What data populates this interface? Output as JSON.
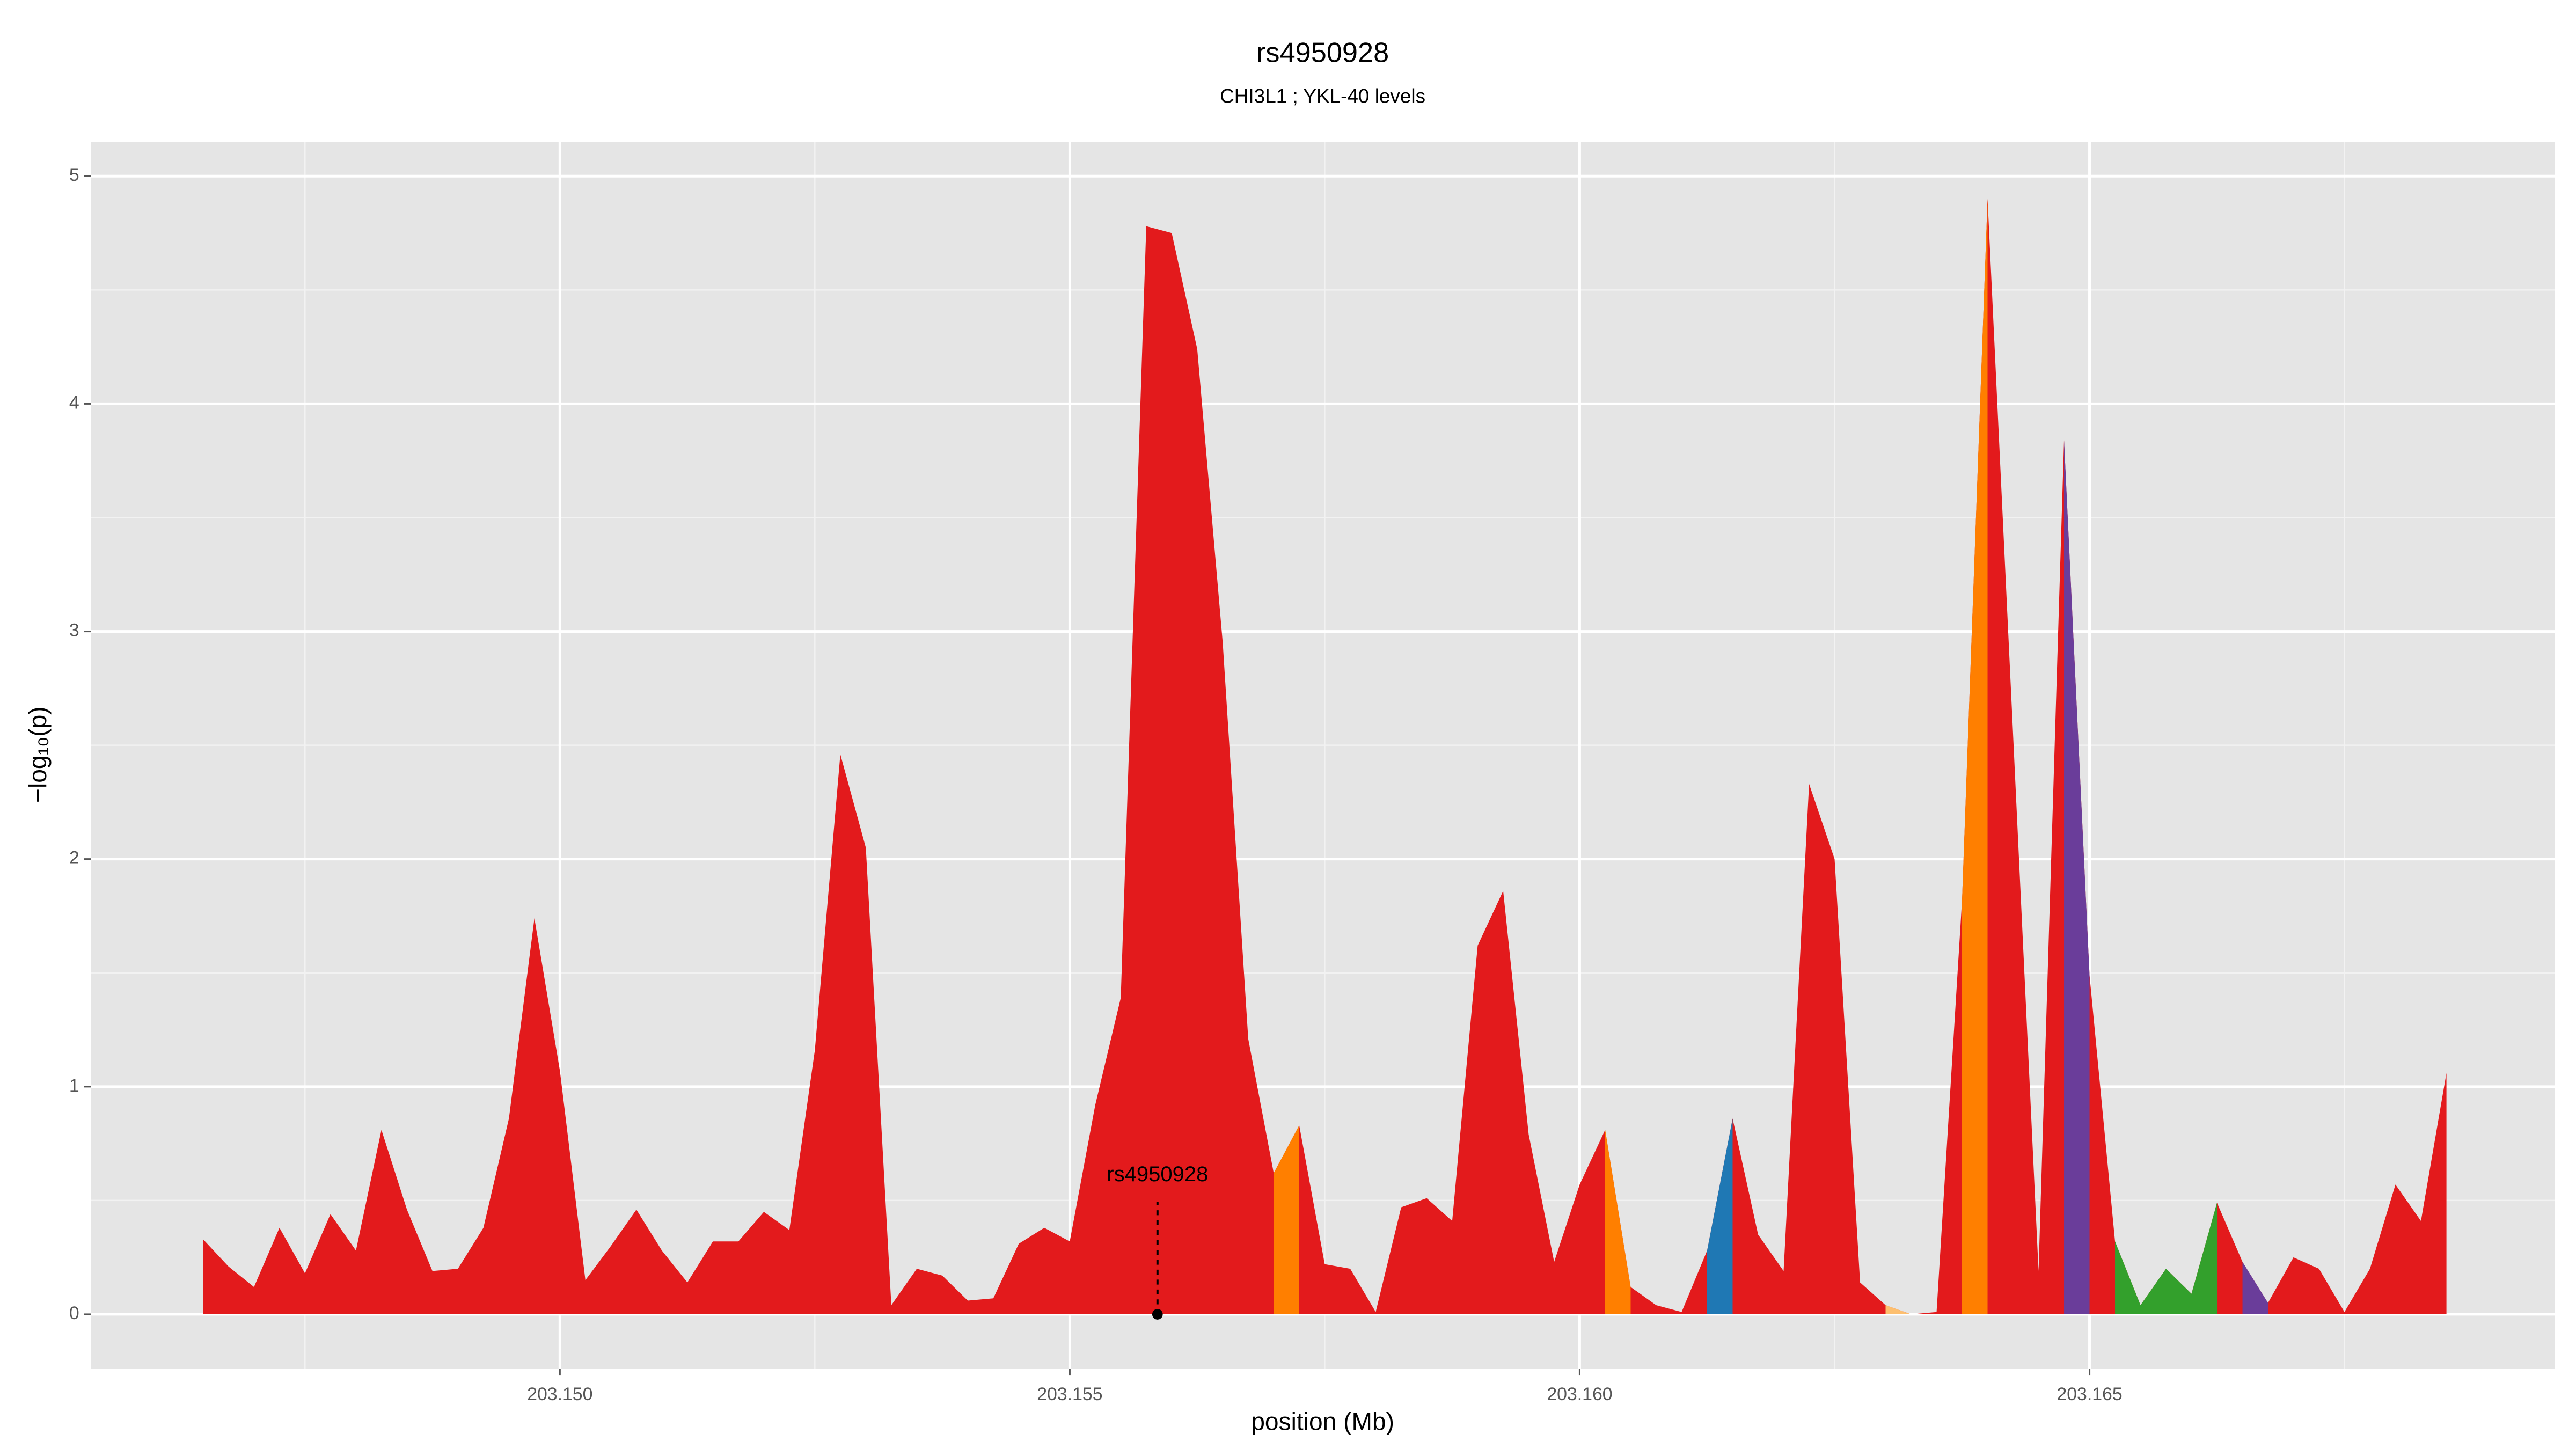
{
  "chart_data": {
    "type": "area",
    "title": "rs4950928",
    "subtitle": "CHI3L1 ; YKL-40 levels",
    "xlabel": "position (Mb)",
    "ylabel": "−log₁₀(p)",
    "xlim": [
      203.1454,
      203.16956
    ],
    "ylim": [
      -0.24,
      5.15
    ],
    "xticks": [
      {
        "value": 203.15,
        "label": "203.150"
      },
      203.155,
      {
        "value": 203.16,
        "label": "203.160"
      },
      203.165
    ],
    "yticks": [
      0,
      1,
      2,
      3,
      4,
      5
    ],
    "x_minor_ticks": [
      203.1475,
      203.1525,
      203.1575,
      203.1625,
      203.1675
    ],
    "y_minor_ticks": [
      0.5,
      1.5,
      2.5,
      3.5,
      4.5
    ],
    "grid": true,
    "series": [
      {
        "color": "#e31a1c",
        "x": [
          203.1465,
          203.14675,
          203.147,
          203.14725,
          203.1475,
          203.14775,
          203.148,
          203.14825,
          203.1485,
          203.14875,
          203.149,
          203.14925,
          203.1495,
          203.14975,
          203.15,
          203.15025,
          203.1505,
          203.15075,
          203.151,
          203.15125,
          203.1515,
          203.15175,
          203.152,
          203.15225,
          203.1525,
          203.15275,
          203.153,
          203.15325,
          203.1535,
          203.15375,
          203.154,
          203.15425,
          203.1545,
          203.15475,
          203.155,
          203.15525,
          203.1555,
          203.15575,
          203.156,
          203.15625,
          203.1565,
          203.15675,
          203.157,
          203.15725,
          203.1575,
          203.15775,
          203.158,
          203.15825,
          203.1585,
          203.15875,
          203.159,
          203.15925,
          203.1595,
          203.15975,
          203.16,
          203.16025,
          203.1605,
          203.16075,
          203.161,
          203.16125,
          203.1615,
          203.16175,
          203.162,
          203.16225,
          203.1625,
          203.16275,
          203.163,
          203.16325,
          203.1635,
          203.16375,
          203.164,
          203.16425,
          203.1645,
          203.16475,
          203.165,
          203.16525,
          203.1655,
          203.16575,
          203.166,
          203.16625,
          203.1665,
          203.16675,
          203.167,
          203.16725,
          203.1675,
          203.16775,
          203.168,
          203.16825,
          203.1685
        ],
        "values": [
          0.33,
          0.21,
          0.12,
          0.38,
          0.18,
          0.44,
          0.28,
          0.81,
          0.46,
          0.19,
          0.2,
          0.38,
          0.86,
          1.74,
          1.07,
          0.15,
          0.3,
          0.46,
          0.28,
          0.14,
          0.32,
          0.32,
          0.45,
          0.37,
          1.16,
          2.46,
          2.05,
          0.04,
          0.2,
          0.17,
          0.06,
          0.07,
          0.31,
          0.38,
          0.32,
          0.92,
          1.39,
          4.78,
          4.75,
          4.24,
          2.95,
          1.21,
          0.62,
          0.83,
          0.22,
          0.2,
          0.01,
          0.47,
          0.51,
          0.41,
          1.62,
          1.86,
          0.79,
          0.23,
          0.57,
          0.81,
          0.12,
          0.04,
          0.01,
          0.28,
          0.86,
          0.35,
          0.19,
          2.33,
          2.0,
          0.14,
          0.04,
          0,
          0.01,
          1.82,
          4.9,
          2.55,
          0.19,
          3.84,
          1.49,
          0.32,
          0.04,
          0.2,
          0.09,
          0.49,
          0.23,
          0.05,
          0.25,
          0.2,
          0.01,
          0.2,
          0.57,
          0.41,
          1.06
        ]
      },
      {
        "color": "#ff7f00",
        "x": [
          203.157,
          203.15725
        ],
        "values": [
          0.62,
          0.83
        ]
      },
      {
        "color": "#ff7f00",
        "x": [
          203.16025,
          203.1605
        ],
        "values": [
          0.81,
          0.12
        ]
      },
      {
        "color": "#1f78b4",
        "x": [
          203.16125,
          203.1615
        ],
        "values": [
          0.28,
          0.86
        ]
      },
      {
        "color": "#fdbf6f",
        "x": [
          203.163,
          203.16325
        ],
        "values": [
          0.04,
          0
        ]
      },
      {
        "color": "#ff7f00",
        "x": [
          203.16375,
          203.164
        ],
        "values": [
          1.82,
          4.9
        ]
      },
      {
        "color": "#6a3d9a",
        "x": [
          203.16475,
          203.165
        ],
        "values": [
          3.84,
          1.49
        ]
      },
      {
        "color": "#33a02c",
        "x": [
          203.16525,
          203.1655,
          203.16575,
          203.166,
          203.16625
        ],
        "values": [
          0.32,
          0.04,
          0.2,
          0.09,
          0.49
        ]
      },
      {
        "color": "#6a3d9a",
        "x": [
          203.1665,
          203.16675
        ],
        "values": [
          0.23,
          0.05
        ]
      }
    ],
    "annotation": {
      "text": "rs4950928",
      "x": 203.15586,
      "y": 0
    }
  }
}
